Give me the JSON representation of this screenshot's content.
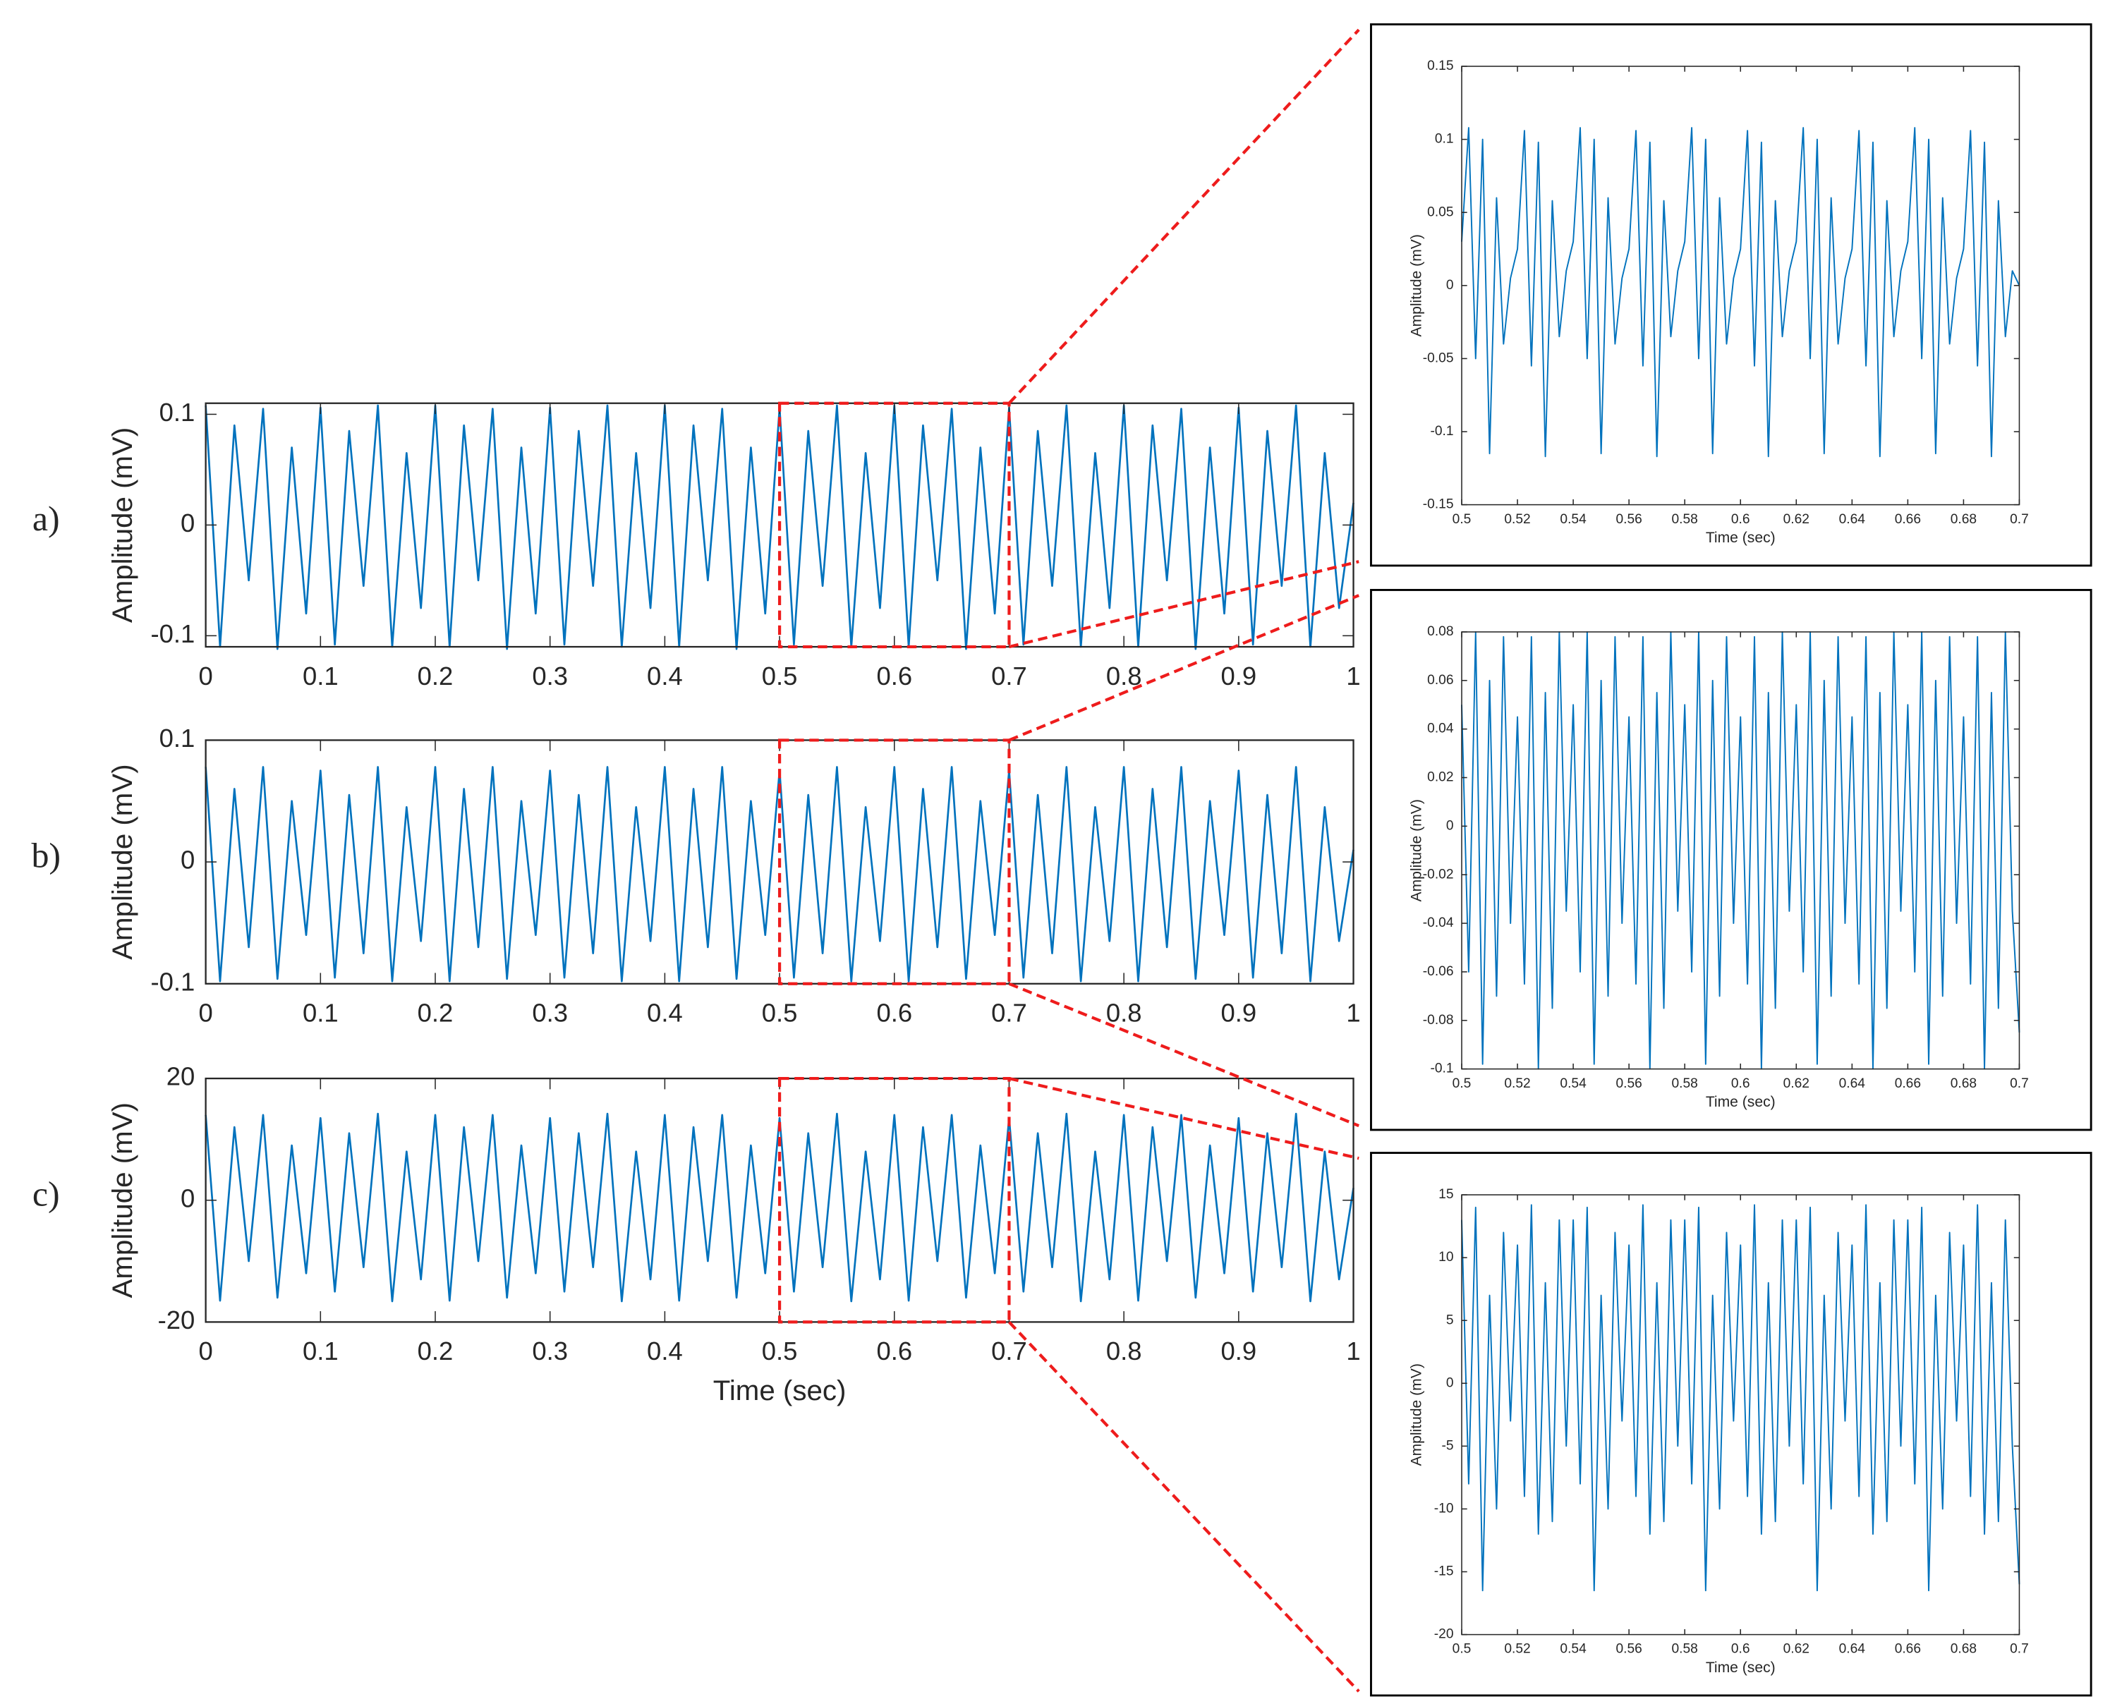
{
  "chart_data": [
    {
      "type": "line",
      "label": "a)",
      "ylabel": "Amplitude (mV)",
      "color": "#0072bd",
      "xlim": [
        0,
        1
      ],
      "xticks": [
        0,
        0.1,
        0.2,
        0.3,
        0.4,
        0.5,
        0.6,
        0.7,
        0.8,
        0.9,
        1
      ],
      "ylim": [
        -0.11,
        0.11
      ],
      "yticks": [
        -0.1,
        0,
        0.1
      ],
      "x": [
        0,
        0.0125,
        0.025,
        0.0375,
        0.05,
        0.0625,
        0.075,
        0.0875,
        0.1,
        0.1125,
        0.125,
        0.1375,
        0.15,
        0.1625,
        0.175,
        0.1875,
        0.2,
        0.2125,
        0.225,
        0.2375,
        0.25,
        0.2625,
        0.275,
        0.2875,
        0.3,
        0.3125,
        0.325,
        0.3375,
        0.35,
        0.3625,
        0.375,
        0.3875,
        0.4,
        0.4125,
        0.425,
        0.4375,
        0.45,
        0.4625,
        0.475,
        0.4875,
        0.5,
        0.5125,
        0.525,
        0.5375,
        0.55,
        0.5625,
        0.575,
        0.5875,
        0.6,
        0.6125,
        0.625,
        0.6375,
        0.65,
        0.6625,
        0.675,
        0.6875,
        0.7,
        0.7125,
        0.725,
        0.7375,
        0.75,
        0.7625,
        0.775,
        0.7875,
        0.8,
        0.8125,
        0.825,
        0.8375,
        0.85,
        0.8625,
        0.875,
        0.8875,
        0.9,
        0.9125,
        0.925,
        0.9375,
        0.95,
        0.9625,
        0.975,
        0.9875,
        1
      ],
      "values": [
        0.108,
        -0.11,
        0.09,
        -0.05,
        0.105,
        -0.112,
        0.07,
        -0.08,
        0.106,
        -0.108,
        0.085,
        -0.055,
        0.108,
        -0.11,
        0.065,
        -0.075,
        0.108,
        -0.11,
        0.09,
        -0.05,
        0.105,
        -0.112,
        0.07,
        -0.08,
        0.106,
        -0.108,
        0.085,
        -0.055,
        0.108,
        -0.11,
        0.065,
        -0.075,
        0.108,
        -0.11,
        0.09,
        -0.05,
        0.105,
        -0.112,
        0.07,
        -0.08,
        0.106,
        -0.108,
        0.085,
        -0.055,
        0.108,
        -0.11,
        0.065,
        -0.075,
        0.108,
        -0.11,
        0.09,
        -0.05,
        0.105,
        -0.112,
        0.07,
        -0.08,
        0.106,
        -0.108,
        0.085,
        -0.055,
        0.108,
        -0.11,
        0.065,
        -0.075,
        0.108,
        -0.11,
        0.09,
        -0.05,
        0.105,
        -0.112,
        0.07,
        -0.08,
        0.106,
        -0.108,
        0.085,
        -0.055,
        0.108,
        -0.11,
        0.065,
        -0.075,
        0.02
      ]
    },
    {
      "type": "line",
      "label": "b)",
      "ylabel": "Amplitude (mV)",
      "color": "#0072bd",
      "xlim": [
        0,
        1
      ],
      "xticks": [
        0,
        0.1,
        0.2,
        0.3,
        0.4,
        0.5,
        0.6,
        0.7,
        0.8,
        0.9,
        1
      ],
      "ylim": [
        -0.1,
        0.1
      ],
      "yticks": [
        -0.1,
        0,
        0.1
      ],
      "x": [
        0,
        0.0125,
        0.025,
        0.0375,
        0.05,
        0.0625,
        0.075,
        0.0875,
        0.1,
        0.1125,
        0.125,
        0.1375,
        0.15,
        0.1625,
        0.175,
        0.1875,
        0.2,
        0.2125,
        0.225,
        0.2375,
        0.25,
        0.2625,
        0.275,
        0.2875,
        0.3,
        0.3125,
        0.325,
        0.3375,
        0.35,
        0.3625,
        0.375,
        0.3875,
        0.4,
        0.4125,
        0.425,
        0.4375,
        0.45,
        0.4625,
        0.475,
        0.4875,
        0.5,
        0.5125,
        0.525,
        0.5375,
        0.55,
        0.5625,
        0.575,
        0.5875,
        0.6,
        0.6125,
        0.625,
        0.6375,
        0.65,
        0.6625,
        0.675,
        0.6875,
        0.7,
        0.7125,
        0.725,
        0.7375,
        0.75,
        0.7625,
        0.775,
        0.7875,
        0.8,
        0.8125,
        0.825,
        0.8375,
        0.85,
        0.8625,
        0.875,
        0.8875,
        0.9,
        0.9125,
        0.925,
        0.9375,
        0.95,
        0.9625,
        0.975,
        0.9875,
        1
      ],
      "values": [
        0.078,
        -0.098,
        0.06,
        -0.07,
        0.078,
        -0.096,
        0.05,
        -0.06,
        0.075,
        -0.095,
        0.055,
        -0.075,
        0.078,
        -0.098,
        0.045,
        -0.065,
        0.078,
        -0.098,
        0.06,
        -0.07,
        0.078,
        -0.096,
        0.05,
        -0.06,
        0.075,
        -0.095,
        0.055,
        -0.075,
        0.078,
        -0.098,
        0.045,
        -0.065,
        0.078,
        -0.098,
        0.06,
        -0.07,
        0.078,
        -0.096,
        0.05,
        -0.06,
        0.075,
        -0.095,
        0.055,
        -0.075,
        0.078,
        -0.098,
        0.045,
        -0.065,
        0.078,
        -0.098,
        0.06,
        -0.07,
        0.078,
        -0.096,
        0.05,
        -0.06,
        0.075,
        -0.095,
        0.055,
        -0.075,
        0.078,
        -0.098,
        0.045,
        -0.065,
        0.078,
        -0.098,
        0.06,
        -0.07,
        0.078,
        -0.096,
        0.05,
        -0.06,
        0.075,
        -0.095,
        0.055,
        -0.075,
        0.078,
        -0.098,
        0.045,
        -0.065,
        0.01
      ]
    },
    {
      "type": "line",
      "label": "c)",
      "ylabel": "Amplitude (mV)",
      "xlabel": "Time (sec)",
      "color": "#0072bd",
      "xlim": [
        0,
        1
      ],
      "xticks": [
        0,
        0.1,
        0.2,
        0.3,
        0.4,
        0.5,
        0.6,
        0.7,
        0.8,
        0.9,
        1
      ],
      "ylim": [
        -20,
        20
      ],
      "yticks": [
        -20,
        0,
        20
      ],
      "x": [
        0,
        0.0125,
        0.025,
        0.0375,
        0.05,
        0.0625,
        0.075,
        0.0875,
        0.1,
        0.1125,
        0.125,
        0.1375,
        0.15,
        0.1625,
        0.175,
        0.1875,
        0.2,
        0.2125,
        0.225,
        0.2375,
        0.25,
        0.2625,
        0.275,
        0.2875,
        0.3,
        0.3125,
        0.325,
        0.3375,
        0.35,
        0.3625,
        0.375,
        0.3875,
        0.4,
        0.4125,
        0.425,
        0.4375,
        0.45,
        0.4625,
        0.475,
        0.4875,
        0.5,
        0.5125,
        0.525,
        0.5375,
        0.55,
        0.5625,
        0.575,
        0.5875,
        0.6,
        0.6125,
        0.625,
        0.6375,
        0.65,
        0.6625,
        0.675,
        0.6875,
        0.7,
        0.7125,
        0.725,
        0.7375,
        0.75,
        0.7625,
        0.775,
        0.7875,
        0.8,
        0.8125,
        0.825,
        0.8375,
        0.85,
        0.8625,
        0.875,
        0.8875,
        0.9,
        0.9125,
        0.925,
        0.9375,
        0.95,
        0.9625,
        0.975,
        0.9875,
        1
      ],
      "values": [
        14,
        -16.5,
        12,
        -10,
        14,
        -16,
        9,
        -12,
        13.5,
        -15,
        11,
        -11,
        14.2,
        -16.6,
        8,
        -13,
        14,
        -16.5,
        12,
        -10,
        14,
        -16,
        9,
        -12,
        13.5,
        -15,
        11,
        -11,
        14.2,
        -16.6,
        8,
        -13,
        14,
        -16.5,
        12,
        -10,
        14,
        -16,
        9,
        -12,
        13.5,
        -15,
        11,
        -11,
        14.2,
        -16.6,
        8,
        -13,
        14,
        -16.5,
        12,
        -10,
        14,
        -16,
        9,
        -12,
        13.5,
        -15,
        11,
        -11,
        14.2,
        -16.6,
        8,
        -13,
        14,
        -16.5,
        12,
        -10,
        14,
        -16,
        9,
        -12,
        13.5,
        -15,
        11,
        -11,
        14.2,
        -16.6,
        8,
        -13,
        2
      ]
    },
    {
      "type": "line",
      "ylabel": "Amplitude (mV)",
      "xlabel": "Time (sec)",
      "color": "#0072bd",
      "xlim": [
        0.5,
        0.7
      ],
      "xticks": [
        0.5,
        0.52,
        0.54,
        0.56,
        0.58,
        0.6,
        0.62,
        0.64,
        0.66,
        0.68,
        0.7
      ],
      "ylim": [
        -0.15,
        0.15
      ],
      "yticks": [
        -0.15,
        -0.1,
        -0.05,
        0,
        0.05,
        0.1,
        0.15
      ],
      "x": [
        0.5,
        0.5025,
        0.505,
        0.5075,
        0.51,
        0.5125,
        0.515,
        0.5175,
        0.52,
        0.5225,
        0.525,
        0.5275,
        0.53,
        0.5325,
        0.535,
        0.5375,
        0.54,
        0.5425,
        0.545,
        0.5475,
        0.55,
        0.5525,
        0.555,
        0.5575,
        0.56,
        0.5625,
        0.565,
        0.5675,
        0.57,
        0.5725,
        0.575,
        0.5775,
        0.58,
        0.5825,
        0.585,
        0.5875,
        0.59,
        0.5925,
        0.595,
        0.5975,
        0.6,
        0.6025,
        0.605,
        0.6075,
        0.61,
        0.6125,
        0.615,
        0.6175,
        0.62,
        0.6225,
        0.625,
        0.6275,
        0.63,
        0.6325,
        0.635,
        0.6375,
        0.64,
        0.6425,
        0.645,
        0.6475,
        0.65,
        0.6525,
        0.655,
        0.6575,
        0.66,
        0.6625,
        0.665,
        0.6675,
        0.67,
        0.6725,
        0.675,
        0.6775,
        0.68,
        0.6825,
        0.685,
        0.6875,
        0.69,
        0.6925,
        0.695,
        0.6975,
        0.7
      ],
      "values": [
        0.03,
        0.108,
        -0.05,
        0.1,
        -0.115,
        0.06,
        -0.04,
        0.005,
        0.025,
        0.106,
        -0.055,
        0.098,
        -0.117,
        0.058,
        -0.035,
        0.01,
        0.03,
        0.108,
        -0.05,
        0.1,
        -0.115,
        0.06,
        -0.04,
        0.005,
        0.025,
        0.106,
        -0.055,
        0.098,
        -0.117,
        0.058,
        -0.035,
        0.01,
        0.03,
        0.108,
        -0.05,
        0.1,
        -0.115,
        0.06,
        -0.04,
        0.005,
        0.025,
        0.106,
        -0.055,
        0.098,
        -0.117,
        0.058,
        -0.035,
        0.01,
        0.03,
        0.108,
        -0.05,
        0.1,
        -0.115,
        0.06,
        -0.04,
        0.005,
        0.025,
        0.106,
        -0.055,
        0.098,
        -0.117,
        0.058,
        -0.035,
        0.01,
        0.03,
        0.108,
        -0.05,
        0.1,
        -0.115,
        0.06,
        -0.04,
        0.005,
        0.025,
        0.106,
        -0.055,
        0.098,
        -0.117,
        0.058,
        -0.035,
        0.01,
        0
      ]
    },
    {
      "type": "line",
      "ylabel": "Amplitude (mV)",
      "xlabel": "Time (sec)",
      "color": "#0072bd",
      "xlim": [
        0.5,
        0.7
      ],
      "xticks": [
        0.5,
        0.52,
        0.54,
        0.56,
        0.58,
        0.6,
        0.62,
        0.64,
        0.66,
        0.68,
        0.7
      ],
      "ylim": [
        -0.1,
        0.08
      ],
      "yticks": [
        -0.1,
        -0.08,
        -0.06,
        -0.04,
        -0.02,
        0,
        0.02,
        0.04,
        0.06,
        0.08
      ],
      "x": [
        0.5,
        0.5025,
        0.505,
        0.5075,
        0.51,
        0.5125,
        0.515,
        0.5175,
        0.52,
        0.5225,
        0.525,
        0.5275,
        0.53,
        0.5325,
        0.535,
        0.5375,
        0.54,
        0.5425,
        0.545,
        0.5475,
        0.55,
        0.5525,
        0.555,
        0.5575,
        0.56,
        0.5625,
        0.565,
        0.5675,
        0.57,
        0.5725,
        0.575,
        0.5775,
        0.58,
        0.5825,
        0.585,
        0.5875,
        0.59,
        0.5925,
        0.595,
        0.5975,
        0.6,
        0.6025,
        0.605,
        0.6075,
        0.61,
        0.6125,
        0.615,
        0.6175,
        0.62,
        0.6225,
        0.625,
        0.6275,
        0.63,
        0.6325,
        0.635,
        0.6375,
        0.64,
        0.6425,
        0.645,
        0.6475,
        0.65,
        0.6525,
        0.655,
        0.6575,
        0.66,
        0.6625,
        0.665,
        0.6675,
        0.67,
        0.6725,
        0.675,
        0.6775,
        0.68,
        0.6825,
        0.685,
        0.6875,
        0.69,
        0.6925,
        0.695,
        0.6975,
        0.7
      ],
      "values": [
        0.05,
        -0.06,
        0.08,
        -0.098,
        0.06,
        -0.07,
        0.078,
        -0.04,
        0.045,
        -0.065,
        0.078,
        -0.1,
        0.055,
        -0.075,
        0.08,
        -0.035,
        0.05,
        -0.06,
        0.08,
        -0.098,
        0.06,
        -0.07,
        0.078,
        -0.04,
        0.045,
        -0.065,
        0.078,
        -0.1,
        0.055,
        -0.075,
        0.08,
        -0.035,
        0.05,
        -0.06,
        0.08,
        -0.098,
        0.06,
        -0.07,
        0.078,
        -0.04,
        0.045,
        -0.065,
        0.078,
        -0.1,
        0.055,
        -0.075,
        0.08,
        -0.035,
        0.05,
        -0.06,
        0.08,
        -0.098,
        0.06,
        -0.07,
        0.078,
        -0.04,
        0.045,
        -0.065,
        0.078,
        -0.1,
        0.055,
        -0.075,
        0.08,
        -0.035,
        0.05,
        -0.06,
        0.08,
        -0.098,
        0.06,
        -0.07,
        0.078,
        -0.04,
        0.045,
        -0.065,
        0.078,
        -0.1,
        0.055,
        -0.075,
        0.08,
        -0.035,
        -0.085
      ]
    },
    {
      "type": "line",
      "ylabel": "Amplitude (mV)",
      "xlabel": "Time (sec)",
      "color": "#0072bd",
      "xlim": [
        0.5,
        0.7
      ],
      "xticks": [
        0.5,
        0.52,
        0.54,
        0.56,
        0.58,
        0.6,
        0.62,
        0.64,
        0.66,
        0.68,
        0.7
      ],
      "ylim": [
        -20,
        15
      ],
      "yticks": [
        -20,
        -15,
        -10,
        -5,
        0,
        5,
        10,
        15
      ],
      "x": [
        0.5,
        0.5025,
        0.505,
        0.5075,
        0.51,
        0.5125,
        0.515,
        0.5175,
        0.52,
        0.5225,
        0.525,
        0.5275,
        0.53,
        0.5325,
        0.535,
        0.5375,
        0.54,
        0.5425,
        0.545,
        0.5475,
        0.55,
        0.5525,
        0.555,
        0.5575,
        0.56,
        0.5625,
        0.565,
        0.5675,
        0.57,
        0.5725,
        0.575,
        0.5775,
        0.58,
        0.5825,
        0.585,
        0.5875,
        0.59,
        0.5925,
        0.595,
        0.5975,
        0.6,
        0.6025,
        0.605,
        0.6075,
        0.61,
        0.6125,
        0.615,
        0.6175,
        0.62,
        0.6225,
        0.625,
        0.6275,
        0.63,
        0.6325,
        0.635,
        0.6375,
        0.64,
        0.6425,
        0.645,
        0.6475,
        0.65,
        0.6525,
        0.655,
        0.6575,
        0.66,
        0.6625,
        0.665,
        0.6675,
        0.67,
        0.6725,
        0.675,
        0.6775,
        0.68,
        0.6825,
        0.685,
        0.6875,
        0.69,
        0.6925,
        0.695,
        0.6975,
        0.7
      ],
      "values": [
        13,
        -8,
        14,
        -16.5,
        7,
        -10,
        12,
        -3,
        11,
        -9,
        14.2,
        -12,
        8,
        -11,
        13,
        -5,
        13,
        -8,
        14,
        -16.5,
        7,
        -10,
        12,
        -3,
        11,
        -9,
        14.2,
        -12,
        8,
        -11,
        13,
        -5,
        13,
        -8,
        14,
        -16.5,
        7,
        -10,
        12,
        -3,
        11,
        -9,
        14.2,
        -12,
        8,
        -11,
        13,
        -5,
        13,
        -8,
        14,
        -16.5,
        7,
        -10,
        12,
        -3,
        11,
        -9,
        14.2,
        -12,
        8,
        -11,
        13,
        -5,
        13,
        -8,
        14,
        -16.5,
        7,
        -10,
        12,
        -3,
        11,
        -9,
        14.2,
        -12,
        8,
        -11,
        13,
        -5,
        -16
      ]
    }
  ]
}
